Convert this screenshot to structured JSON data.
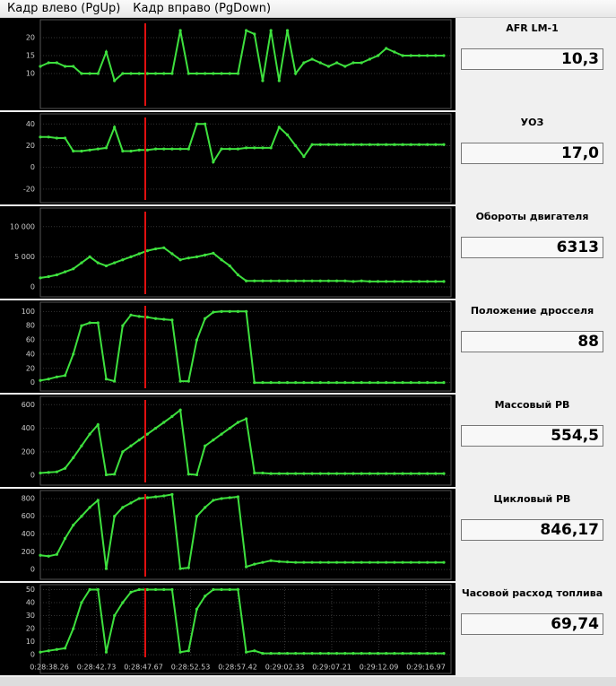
{
  "menu": [
    "Кадр влево (PgUp)",
    "Кадр вправо (PgDown)"
  ],
  "chart_data": [
    {
      "type": "line",
      "title": "AFR LM-1",
      "readout": "10,3",
      "color": "#3ee03e",
      "ylim": [
        1,
        24
      ],
      "yticks": [
        10,
        15,
        20
      ],
      "grid": true,
      "values": [
        12,
        13,
        13,
        12,
        12,
        10,
        10,
        10,
        16,
        8,
        10,
        10,
        10,
        10,
        10,
        10,
        10,
        22,
        10,
        10,
        10,
        10,
        10,
        10,
        10,
        22,
        21,
        8,
        22,
        8,
        22,
        10,
        13,
        14,
        13,
        12,
        13,
        12,
        13,
        13,
        14,
        15,
        17,
        16,
        15,
        15,
        15,
        15,
        15,
        15
      ]
    },
    {
      "type": "line",
      "title": "УОЗ",
      "readout": "17,0",
      "color": "#3ee03e",
      "ylim": [
        -30,
        46
      ],
      "yticks": [
        -20,
        0,
        20,
        40
      ],
      "grid": true,
      "values": [
        28,
        28,
        27,
        27,
        15,
        15,
        16,
        17,
        18,
        37,
        15,
        15,
        16,
        16,
        17,
        17,
        17,
        17,
        17,
        40,
        40,
        5,
        17,
        17,
        17,
        18,
        18,
        18,
        18,
        37,
        30,
        20,
        10,
        21,
        21,
        21,
        21,
        21,
        21,
        21,
        21,
        21,
        21,
        21,
        21,
        21,
        21,
        21,
        21,
        21
      ]
    },
    {
      "type": "line",
      "title": "Обороты двигателя",
      "readout": "6313",
      "color": "#3ee03e",
      "ylim": [
        -1200,
        12500
      ],
      "yticks": [
        0,
        {
          "value": 5000,
          "label": "5 000"
        },
        {
          "value": 10000,
          "label": "10 000"
        }
      ],
      "grid": true,
      "values": [
        1500,
        1700,
        2000,
        2500,
        3000,
        4000,
        5000,
        4000,
        3500,
        4000,
        4500,
        5000,
        5500,
        6000,
        6313,
        6500,
        5500,
        4500,
        4800,
        5000,
        5300,
        5600,
        4500,
        3500,
        2000,
        1000,
        1000,
        1000,
        1000,
        1000,
        1000,
        1000,
        1000,
        1000,
        1000,
        1000,
        1000,
        1000,
        900,
        1000,
        900,
        900,
        900,
        900,
        900,
        900,
        900,
        900,
        900,
        900
      ]
    },
    {
      "type": "line",
      "title": "Положение дросселя",
      "readout": "88",
      "color": "#3ee03e",
      "ylim": [
        -8,
        108
      ],
      "yticks": [
        0,
        20,
        40,
        60,
        80,
        100
      ],
      "grid": true,
      "values": [
        3,
        5,
        8,
        10,
        40,
        80,
        84,
        84,
        5,
        2,
        80,
        95,
        93,
        92,
        90,
        89,
        88,
        2,
        2,
        60,
        90,
        99,
        100,
        100,
        100,
        100,
        0,
        0,
        0,
        0,
        0,
        0,
        0,
        0,
        0,
        0,
        0,
        0,
        0,
        0,
        0,
        0,
        0,
        0,
        0,
        0,
        0,
        0,
        0,
        0
      ]
    },
    {
      "type": "line",
      "title": "Массовый РВ",
      "readout": "554,5",
      "color": "#3ee03e",
      "ylim": [
        -60,
        640
      ],
      "yticks": [
        0,
        200,
        400,
        600
      ],
      "grid": true,
      "values": [
        20,
        25,
        30,
        60,
        150,
        250,
        350,
        430,
        5,
        10,
        200,
        250,
        300,
        350,
        400,
        450,
        500,
        554.5,
        10,
        5,
        250,
        300,
        350,
        400,
        450,
        480,
        20,
        20,
        15,
        15,
        15,
        15,
        15,
        15,
        15,
        15,
        15,
        15,
        15,
        15,
        15,
        15,
        15,
        15,
        15,
        15,
        15,
        15,
        15,
        15
      ]
    },
    {
      "type": "line",
      "title": "Цикловый РВ",
      "readout": "846,17",
      "color": "#3ee03e",
      "ylim": [
        -80,
        850
      ],
      "yticks": [
        0,
        200,
        400,
        600,
        800
      ],
      "grid": true,
      "values": [
        160,
        150,
        170,
        350,
        500,
        600,
        700,
        780,
        10,
        600,
        700,
        750,
        800,
        810,
        820,
        830,
        846.17,
        10,
        20,
        600,
        700,
        780,
        800,
        810,
        820,
        30,
        60,
        80,
        100,
        90,
        85,
        80,
        80,
        80,
        80,
        80,
        80,
        80,
        80,
        80,
        80,
        80,
        80,
        80,
        80,
        80,
        80,
        80,
        80,
        80
      ]
    },
    {
      "type": "line",
      "title": "Часовой расход топлива",
      "readout": "69,74",
      "color": "#3ee03e",
      "ylim": [
        -2,
        51
      ],
      "yticks": [
        0,
        10,
        20,
        30,
        40,
        50
      ],
      "grid": true,
      "values": [
        2,
        3,
        4,
        5,
        20,
        40,
        50,
        50,
        2,
        30,
        40,
        48,
        50,
        50,
        50,
        50,
        50,
        2,
        3,
        35,
        45,
        50,
        50,
        50,
        50,
        2,
        3,
        1,
        1,
        1,
        1,
        1,
        1,
        1,
        1,
        1,
        1,
        1,
        1,
        1,
        1,
        1,
        1,
        1,
        1,
        1,
        1,
        1,
        1,
        1
      ],
      "time_labels": [
        "0:28:38.26",
        "0:28:42.73",
        "0:28:47.67",
        "0:28:52.53",
        "0:28:57.42",
        "0:29:02.33",
        "0:29:07.21",
        "0:29:12.09",
        "0:29:16.97"
      ]
    }
  ]
}
